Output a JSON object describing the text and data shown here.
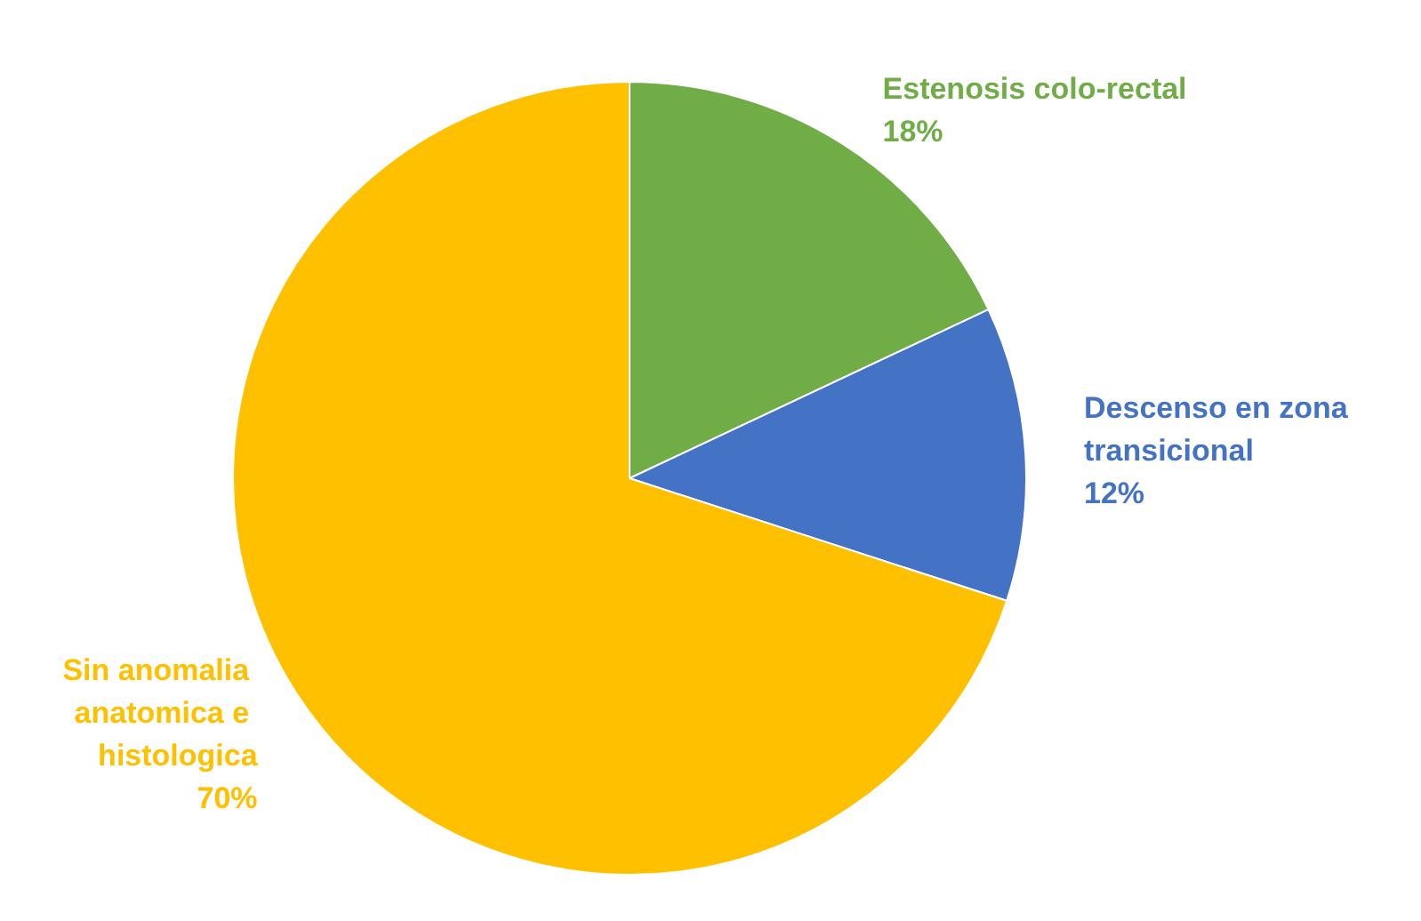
{
  "chart_data": {
    "type": "pie",
    "categories": [
      "Estenosis colo-rectal",
      "Descenso en zona transicional",
      "Sin anomalia anatomica e histologica"
    ],
    "values": [
      18,
      12,
      70
    ],
    "value_labels": [
      "18%",
      "12%",
      "70%"
    ],
    "colors": [
      "#70ad47",
      "#4472c4",
      "#ffc000"
    ],
    "legend": false
  }
}
